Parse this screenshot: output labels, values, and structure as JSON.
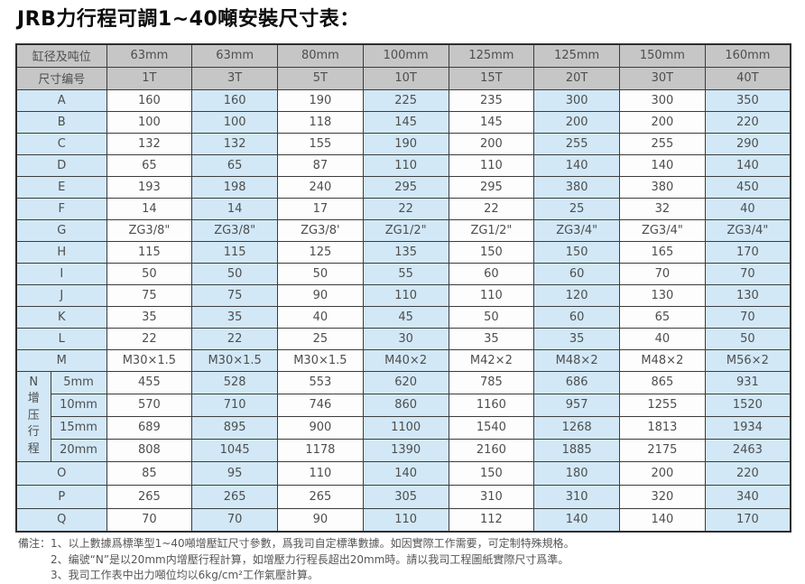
{
  "title": "JRB力行程可調1~40噸安裝尺寸表：",
  "colors": {
    "header_bg": "#c6c6c6",
    "stripe_blue": "#d2e8f7",
    "cell_white": "#fdfdfd",
    "border": "#3c3c3c",
    "text": "#4e4e4e"
  },
  "table": {
    "header_row1_label": "缸径及吨位",
    "header_row2_label": "尺寸编号",
    "bores": [
      "63mm",
      "63mm",
      "80mm",
      "100mm",
      "125mm",
      "125mm",
      "150mm",
      "160mm"
    ],
    "tonnages": [
      "1T",
      "3T",
      "5T",
      "10T",
      "15T",
      "20T",
      "30T",
      "40T"
    ],
    "dimension_rows": [
      {
        "label": "A",
        "values": [
          "160",
          "160",
          "190",
          "225",
          "235",
          "300",
          "300",
          "350"
        ]
      },
      {
        "label": "B",
        "values": [
          "100",
          "100",
          "118",
          "145",
          "145",
          "200",
          "200",
          "220"
        ]
      },
      {
        "label": "C",
        "values": [
          "132",
          "132",
          "155",
          "190",
          "200",
          "255",
          "255",
          "290"
        ]
      },
      {
        "label": "D",
        "values": [
          "65",
          "65",
          "87",
          "110",
          "110",
          "140",
          "140",
          "140"
        ]
      },
      {
        "label": "E",
        "values": [
          "193",
          "198",
          "240",
          "295",
          "295",
          "380",
          "380",
          "450"
        ]
      },
      {
        "label": "F",
        "values": [
          "14",
          "14",
          "17",
          "22",
          "22",
          "25",
          "32",
          "40"
        ]
      },
      {
        "label": "G",
        "values": [
          "ZG3/8\"",
          "ZG3/8\"",
          "ZG3/8'",
          "ZG1/2\"",
          "ZG1/2\"",
          "ZG3/4\"",
          "ZG3/4\"",
          "ZG3/4\""
        ]
      },
      {
        "label": "H",
        "values": [
          "115",
          "115",
          "125",
          "135",
          "150",
          "150",
          "165",
          "170"
        ]
      },
      {
        "label": "I",
        "values": [
          "50",
          "50",
          "50",
          "55",
          "60",
          "60",
          "70",
          "70"
        ]
      },
      {
        "label": "J",
        "values": [
          "75",
          "75",
          "90",
          "110",
          "110",
          "120",
          "130",
          "130"
        ]
      },
      {
        "label": "K",
        "values": [
          "35",
          "35",
          "40",
          "45",
          "50",
          "60",
          "65",
          "70"
        ]
      },
      {
        "label": "L",
        "values": [
          "22",
          "22",
          "25",
          "30",
          "35",
          "35",
          "40",
          "50"
        ]
      },
      {
        "label": "M",
        "values": [
          "M30×1.5",
          "M30×1.5",
          "M30×1.5",
          "M40×2",
          "M42×2",
          "M48×2",
          "M48×2",
          "M56×2"
        ]
      }
    ],
    "n_section": {
      "vertical_label": "N增压行程",
      "rows": [
        {
          "label": "5mm",
          "values": [
            "455",
            "528",
            "553",
            "620",
            "785",
            "686",
            "865",
            "931"
          ]
        },
        {
          "label": "10mm",
          "values": [
            "570",
            "710",
            "746",
            "860",
            "1160",
            "957",
            "1255",
            "1520"
          ]
        },
        {
          "label": "15mm",
          "values": [
            "689",
            "895",
            "900",
            "1100",
            "1540",
            "1268",
            "1813",
            "1934"
          ]
        },
        {
          "label": "20mm",
          "values": [
            "808",
            "1045",
            "1178",
            "1390",
            "2160",
            "1885",
            "2175",
            "2463"
          ]
        }
      ]
    },
    "tail_rows": [
      {
        "label": "O",
        "values": [
          "85",
          "95",
          "110",
          "140",
          "150",
          "180",
          "200",
          "220"
        ]
      },
      {
        "label": "P",
        "values": [
          "265",
          "265",
          "265",
          "305",
          "310",
          "310",
          "320",
          "340"
        ]
      },
      {
        "label": "Q",
        "values": [
          "70",
          "70",
          "90",
          "110",
          "112",
          "140",
          "140",
          "170"
        ]
      }
    ]
  },
  "notes": {
    "label": "備注：",
    "items": [
      "1、以上數據爲標準型1~40噸增壓缸尺寸參數，爲我司自定標準數據。如因實際工作需要，可定制特殊規格。",
      "2、编號“N”是以20mm内增壓行程計算，如增壓力行程長超出20mm時。請以我司工程圖紙實際尺寸爲準。",
      "3、我司工作表中出力噸位均以6kg/cm²工作氣壓計算。"
    ]
  }
}
